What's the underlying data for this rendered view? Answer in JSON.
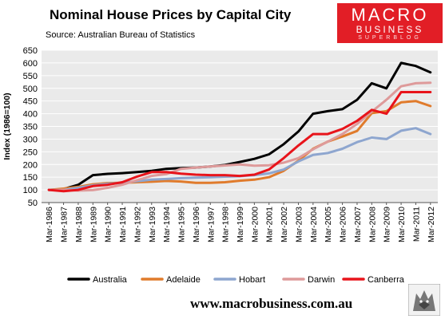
{
  "header": {
    "title": "Nominal House Prices by Capital City",
    "source": "Source: Australian Bureau of Statistics"
  },
  "logo": {
    "line1": "MACRO",
    "line2": "BUSINESS",
    "line3": "SUPERBLOG",
    "color": "#e21e26"
  },
  "footer": {
    "url": "www.macrobusiness.com.au"
  },
  "colors": {
    "Australia": "#000000",
    "Adelaide": "#e07b2c",
    "Hobart": "#8ea6cf",
    "Darwin": "#de9a9a",
    "Canberra": "#e8141b",
    "plot_bg": "#eaeaea"
  },
  "chart_data": {
    "type": "line",
    "title": "Nominal House Prices by Capital City",
    "ylabel": "Index (1986=100)",
    "xlabel": "",
    "ylim": [
      50,
      650
    ],
    "yticks": [
      50,
      100,
      150,
      200,
      250,
      300,
      350,
      400,
      450,
      500,
      550,
      600,
      650
    ],
    "grid": true,
    "legend_position": "bottom",
    "x": [
      "Mar-1986",
      "Mar-1987",
      "Mar-1988",
      "Mar-1989",
      "Mar-1990",
      "Mar-1991",
      "Mar-1992",
      "Mar-1993",
      "Mar-1994",
      "Mar-1995",
      "Mar-1996",
      "Mar-1997",
      "Mar-1998",
      "Mar-1999",
      "Mar-2000",
      "Mar-2001",
      "Mar-2002",
      "Mar-2003",
      "Mar-2004",
      "Mar-2005",
      "Mar-2006",
      "Mar-2007",
      "Mar-2008",
      "Mar-2009",
      "Mar-2010",
      "Mar-2011",
      "Mar-2012"
    ],
    "series": [
      {
        "name": "Australia",
        "values": [
          100,
          103,
          120,
          158,
          163,
          166,
          170,
          175,
          183,
          186,
          188,
          192,
          198,
          210,
          222,
          240,
          280,
          330,
          400,
          410,
          418,
          455,
          520,
          500,
          600,
          588,
          563
        ]
      },
      {
        "name": "Adelaide",
        "values": [
          100,
          105,
          112,
          122,
          127,
          128,
          130,
          132,
          135,
          133,
          128,
          128,
          130,
          136,
          140,
          150,
          175,
          215,
          262,
          290,
          310,
          332,
          402,
          410,
          445,
          450,
          430
        ]
      },
      {
        "name": "Hobart",
        "values": [
          100,
          100,
          108,
          118,
          124,
          128,
          134,
          140,
          143,
          146,
          148,
          150,
          152,
          154,
          158,
          165,
          180,
          212,
          238,
          245,
          262,
          288,
          306,
          300,
          333,
          343,
          320
        ]
      },
      {
        "name": "Darwin",
        "values": [
          100,
          100,
          97,
          99,
          108,
          120,
          138,
          155,
          162,
          183,
          188,
          192,
          196,
          200,
          195,
          197,
          207,
          225,
          260,
          290,
          320,
          360,
          408,
          455,
          508,
          520,
          522
        ]
      },
      {
        "name": "Canberra",
        "values": [
          100,
          95,
          100,
          115,
          120,
          130,
          152,
          170,
          170,
          164,
          160,
          158,
          158,
          155,
          160,
          180,
          225,
          275,
          320,
          320,
          340,
          372,
          415,
          400,
          485,
          485,
          485
        ]
      }
    ]
  }
}
